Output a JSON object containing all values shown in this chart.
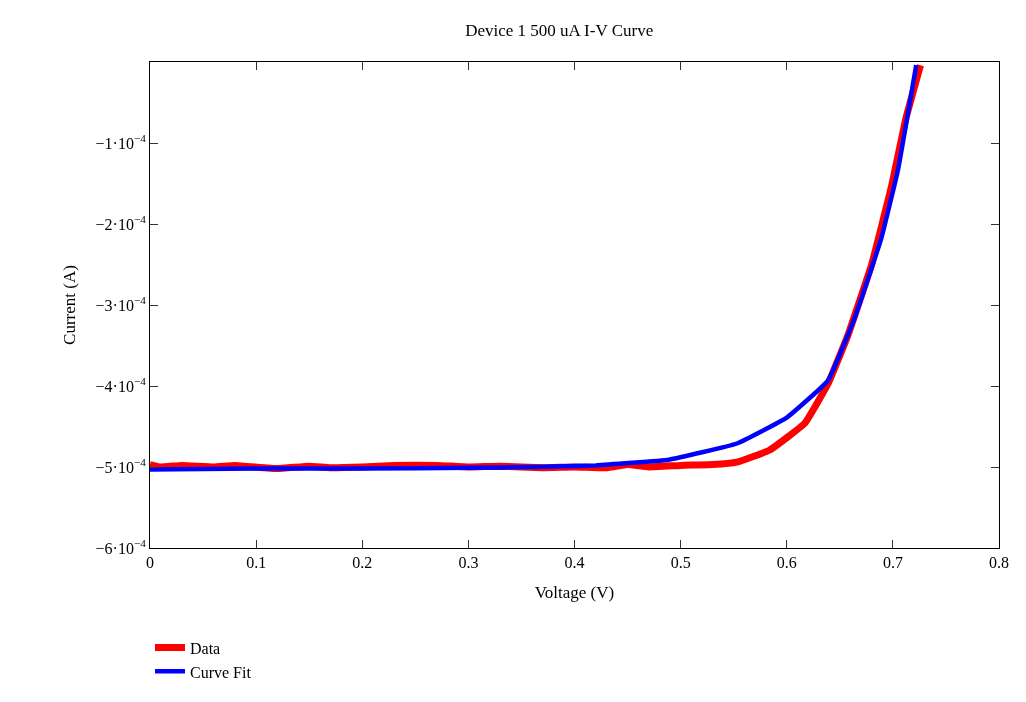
{
  "chart_data": {
    "type": "line",
    "title": "Device 1 500 uA I-V Curve",
    "xlabel": "Voltage (V)",
    "ylabel": "Current (A)",
    "xlim": [
      0,
      0.8
    ],
    "xticks": [
      0,
      0.1,
      0.2,
      0.3,
      0.4,
      0.5,
      0.6,
      0.7,
      0.8
    ],
    "ylim": [
      -0.0006,
      0
    ],
    "yticks": [
      {
        "value": -0.0006,
        "label": "−6·10$^{−4}$"
      },
      {
        "value": -0.0005,
        "label": "−5·10$^{−4}$"
      },
      {
        "value": -0.0004,
        "label": "−4·10$^{−4}$"
      },
      {
        "value": -0.0003,
        "label": "−3·10$^{−4}$"
      },
      {
        "value": -0.0002,
        "label": "−2·10$^{−4}$"
      },
      {
        "value": -0.0001,
        "label": "−1·10$^{−4}$"
      }
    ],
    "grid": false,
    "legend": "bottom left",
    "line_style": "solid",
    "marker": "none",
    "series": [
      {
        "name": "Data",
        "color": "#ff0000",
        "x": [
          0,
          0.01,
          0.03,
          0.06,
          0.08,
          0.12,
          0.15,
          0.17,
          0.2,
          0.23,
          0.27,
          0.3,
          0.33,
          0.37,
          0.4,
          0.43,
          0.45,
          0.47,
          0.5,
          0.53,
          0.553,
          0.584,
          0.617,
          0.639,
          0.658,
          0.68,
          0.699,
          0.712,
          0.726
        ],
        "values": [
          -0.000497,
          -0.0005,
          -0.000498,
          -0.0005,
          -0.000498,
          -0.000502,
          -0.000499,
          -0.000501,
          -0.0005,
          -0.000498,
          -0.000498,
          -0.0005,
          -0.000499,
          -0.000501,
          -0.0005,
          -0.000501,
          -0.000497,
          -0.0005,
          -0.000498,
          -0.000497,
          -0.000494,
          -0.000479,
          -0.000446,
          -0.000397,
          -0.000336,
          -0.00025,
          -0.000152,
          -7.1e-05,
          -4e-06
        ]
      },
      {
        "name": "Curve Fit",
        "color": "#0000ff",
        "x": [
          0,
          0.1,
          0.2,
          0.3,
          0.362,
          0.42,
          0.489,
          0.553,
          0.6,
          0.639,
          0.664,
          0.689,
          0.705,
          0.722
        ],
        "values": [
          -0.000503,
          -0.000502,
          -0.000502,
          -0.000501,
          -0.0005,
          -0.000498,
          -0.000491,
          -0.000471,
          -0.000439,
          -0.000393,
          -0.000316,
          -0.000218,
          -0.000132,
          -4e-06
        ]
      }
    ]
  }
}
